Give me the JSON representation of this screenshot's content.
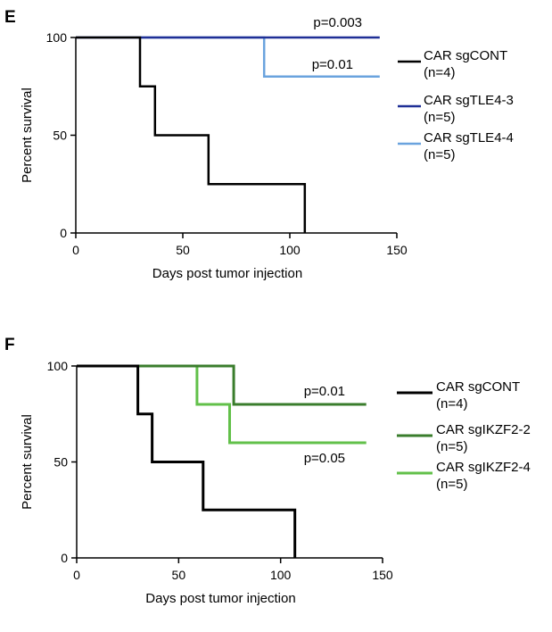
{
  "chart_data": [
    {
      "type": "line",
      "panel": "E",
      "title": "",
      "xlabel": "Days post tumor injection",
      "ylabel": "Percent survival",
      "xlim": [
        0,
        150
      ],
      "ylim": [
        0,
        100
      ],
      "xticks": [
        0,
        50,
        100,
        150
      ],
      "yticks": [
        0,
        50,
        100
      ],
      "legend_position": "right",
      "series": [
        {
          "name": "CAR sgCONT",
          "n": "(n=4)",
          "color": "#000000",
          "x": [
            0,
            30,
            30,
            37,
            37,
            62,
            62,
            107,
            107
          ],
          "y": [
            100,
            100,
            75,
            75,
            50,
            50,
            25,
            25,
            0
          ]
        },
        {
          "name": "CAR sgTLE4-3",
          "n": "(n=5)",
          "color": "#1f2f96",
          "x": [
            0,
            142
          ],
          "y": [
            100,
            100
          ]
        },
        {
          "name": "CAR sgTLE4-4",
          "n": "(n=5)",
          "color": "#6aa3de",
          "x": [
            30,
            88,
            88,
            142
          ],
          "y": [
            100,
            100,
            80,
            80
          ]
        }
      ],
      "annotations": [
        {
          "text": "p=0.003",
          "x": 128,
          "y": 100
        },
        {
          "text": "p=0.01",
          "x": 128,
          "y": 80
        }
      ]
    },
    {
      "type": "line",
      "panel": "F",
      "title": "",
      "xlabel": "Days post tumor injection",
      "ylabel": "Percent survival",
      "xlim": [
        0,
        150
      ],
      "ylim": [
        0,
        100
      ],
      "xticks": [
        0,
        50,
        100,
        150
      ],
      "yticks": [
        0,
        50,
        100
      ],
      "legend_position": "right",
      "series": [
        {
          "name": "CAR sgCONT",
          "n": "(n=4)",
          "color": "#000000",
          "x": [
            0,
            30,
            30,
            37,
            37,
            62,
            62,
            107,
            107
          ],
          "y": [
            100,
            100,
            75,
            75,
            50,
            50,
            25,
            25,
            0
          ]
        },
        {
          "name": "CAR sgIKZF2-2",
          "n": "(n=5)",
          "color": "#3a7d2c",
          "x": [
            0,
            77,
            77,
            142
          ],
          "y": [
            100,
            100,
            80,
            80
          ]
        },
        {
          "name": "CAR sgIKZF2-4",
          "n": "(n=5)",
          "color": "#62c04a",
          "x": [
            0,
            59,
            59,
            75,
            75,
            142
          ],
          "y": [
            100,
            100,
            80,
            80,
            60,
            60
          ]
        }
      ],
      "annotations": [
        {
          "text": "p=0.01",
          "x": 127,
          "y": 80
        },
        {
          "text": "p=0.05",
          "x": 127,
          "y": 60
        }
      ]
    }
  ]
}
